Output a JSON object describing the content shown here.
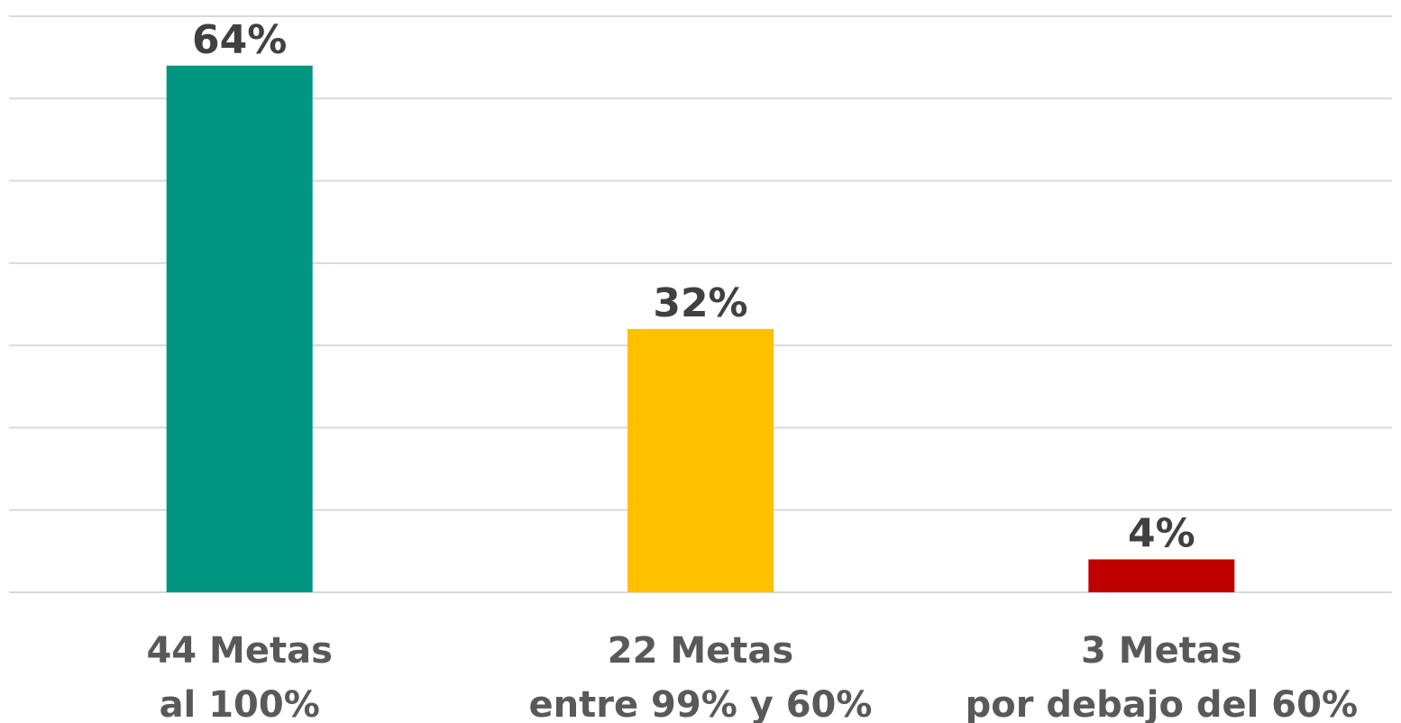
{
  "chart_data": {
    "type": "bar",
    "title": "",
    "xlabel": "",
    "ylabel": "",
    "ylim": [
      0,
      70
    ],
    "grid": true,
    "categories": [
      [
        "44 Metas",
        "al 100%"
      ],
      [
        "22 Metas",
        "entre 99% y 60%"
      ],
      [
        "3 Metas",
        "por debajo del 60%"
      ]
    ],
    "values": [
      64,
      32,
      4
    ],
    "data_labels": [
      "64%",
      "32%",
      "4%"
    ],
    "colors": [
      "#009580",
      "#ffc000",
      "#c00000"
    ]
  }
}
